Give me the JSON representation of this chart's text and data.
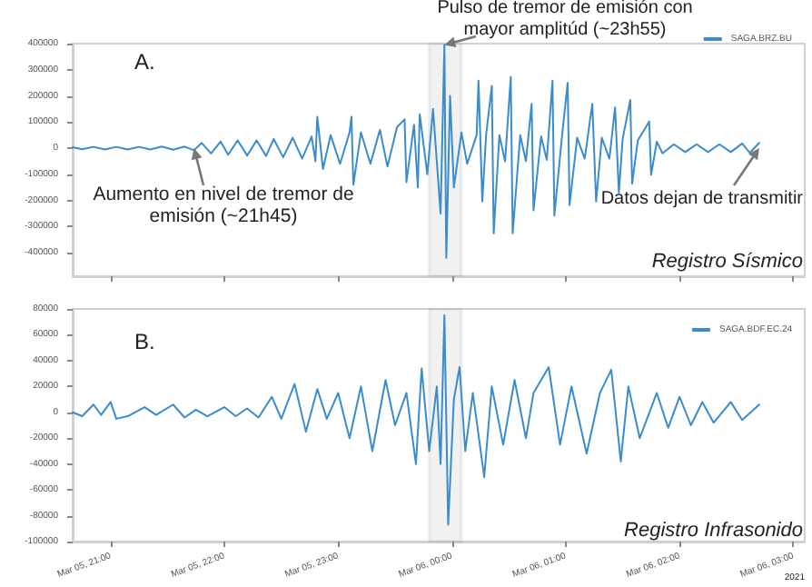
{
  "chart_data": [
    {
      "type": "line",
      "xlim": [
        "2021-03-05T20:40",
        "2021-03-06T03:06"
      ],
      "ylim": [
        -490000,
        400000
      ],
      "xticks": [
        "2021-03-05T21:00",
        "2021-03-05T22:00",
        "2021-03-05T23:00",
        "2021-03-06T00:00",
        "2021-03-06T01:00",
        "2021-03-06T02:00",
        "2021-03-06T03:00"
      ],
      "yticks": [
        -400000,
        -300000,
        -200000,
        -100000,
        0,
        100000,
        200000,
        300000,
        400000
      ],
      "tick_labels": "y",
      "grid": false,
      "legend": "top right",
      "marker": "none",
      "line_style": "solid",
      "bands": [
        {
          "axis": "x",
          "from": "2021-03-05T23:48",
          "to": "2021-03-06T00:05",
          "color": "#8c8c8c"
        }
      ],
      "annotations": [
        "A.",
        {
          "text": "Aumento en nivel de tremor de emisión (~21h45)",
          "x": "2021-03-05T21:44",
          "y": 0
        },
        {
          "text": "Pulso de tremor de emisión con mayor amplitúd (~23h55)",
          "x": "2021-03-05T23:56",
          "y": 395000
        },
        {
          "text": "Datos dejan de transmitir",
          "x": "2021-03-06T02:42",
          "y": 0
        },
        "Registro Sísmico"
      ],
      "series": [
        {
          "name": "SAGA.BRZ.BU",
          "color": "#3a8ccc",
          "x": [
            "2021-03-05T20:40",
            "2021-03-05T20:45",
            "2021-03-05T20:51",
            "2021-03-05T20:57",
            "2021-03-05T21:03",
            "2021-03-05T21:09",
            "2021-03-05T21:15",
            "2021-03-05T21:21",
            "2021-03-05T21:27",
            "2021-03-05T21:33",
            "2021-03-05T21:39",
            "2021-03-05T21:44",
            "2021-03-05T21:48",
            "2021-03-05T21:53",
            "2021-03-05T21:58",
            "2021-03-05T22:02",
            "2021-03-05T22:07",
            "2021-03-05T22:12",
            "2021-03-05T22:17",
            "2021-03-05T22:22",
            "2021-03-05T22:26",
            "2021-03-05T22:31",
            "2021-03-05T22:36",
            "2021-03-05T22:41",
            "2021-03-05T22:46",
            "2021-03-05T22:48",
            "2021-03-05T22:49",
            "2021-03-05T22:52",
            "2021-03-05T22:56",
            "2021-03-05T23:01",
            "2021-03-05T23:06",
            "2021-03-05T23:07",
            "2021-03-05T23:08",
            "2021-03-05T23:12",
            "2021-03-05T23:17",
            "2021-03-05T23:22",
            "2021-03-05T23:26",
            "2021-03-05T23:31",
            "2021-03-05T23:35",
            "2021-03-05T23:36",
            "2021-03-05T23:40",
            "2021-03-05T23:42",
            "2021-03-05T23:43",
            "2021-03-05T23:47",
            "2021-03-05T23:50",
            "2021-03-05T23:54",
            "2021-03-05T23:56",
            "2021-03-05T23:57",
            "2021-03-05T23:59",
            "2021-03-06T00:01",
            "2021-03-06T00:05",
            "2021-03-06T00:08",
            "2021-03-06T00:13",
            "2021-03-06T00:14",
            "2021-03-06T00:16",
            "2021-03-06T00:18",
            "2021-03-06T00:21",
            "2021-03-06T00:22",
            "2021-03-06T00:25",
            "2021-03-06T00:28",
            "2021-03-06T00:31",
            "2021-03-06T00:32",
            "2021-03-06T00:36",
            "2021-03-06T00:39",
            "2021-03-06T00:42",
            "2021-03-06T00:43",
            "2021-03-06T00:47",
            "2021-03-06T00:50",
            "2021-03-06T00:53",
            "2021-03-06T00:54",
            "2021-03-06T00:58",
            "2021-03-06T01:01",
            "2021-03-06T01:02",
            "2021-03-06T01:06",
            "2021-03-06T01:10",
            "2021-03-06T01:14",
            "2021-03-06T01:16",
            "2021-03-06T01:19",
            "2021-03-06T01:23",
            "2021-03-06T01:26",
            "2021-03-06T01:28",
            "2021-03-06T01:30",
            "2021-03-06T01:34",
            "2021-03-06T01:35",
            "2021-03-06T01:38",
            "2021-03-06T01:44",
            "2021-03-06T01:45",
            "2021-03-06T01:48",
            "2021-03-06T01:51",
            "2021-03-06T01:57",
            "2021-03-06T02:03",
            "2021-03-06T02:09",
            "2021-03-06T02:15",
            "2021-03-06T02:21",
            "2021-03-06T02:27",
            "2021-03-06T02:33",
            "2021-03-06T02:37",
            "2021-03-06T02:42"
          ],
          "values": [
            4000,
            -4000,
            5000,
            -5000,
            5000,
            -5000,
            5000,
            -5000,
            6000,
            -6000,
            6000,
            -8000,
            20000,
            -20000,
            25000,
            -25000,
            30000,
            -28000,
            30000,
            -30000,
            35000,
            -35000,
            40000,
            -40000,
            45000,
            -50000,
            120000,
            -80000,
            50000,
            -60000,
            60000,
            120000,
            -140000,
            60000,
            -60000,
            70000,
            -70000,
            80000,
            110000,
            -130000,
            90000,
            -150000,
            130000,
            -100000,
            150000,
            -250000,
            395000,
            -420000,
            200000,
            -150000,
            60000,
            -60000,
            50000,
            258000,
            -204000,
            50000,
            238000,
            -326000,
            50000,
            -50000,
            272000,
            -326000,
            50000,
            -50000,
            170000,
            -238000,
            45000,
            -45000,
            258000,
            -258000,
            45000,
            250000,
            -218000,
            40000,
            -40000,
            170000,
            -204000,
            40000,
            -40000,
            156000,
            -170000,
            35000,
            184000,
            -136000,
            30000,
            102000,
            -102000,
            25000,
            -20000,
            15000,
            -15000,
            15000,
            -15000,
            15000,
            -15000,
            18000,
            -18000,
            20000
          ]
        }
      ]
    },
    {
      "type": "line",
      "xlim": [
        "2021-03-05T20:40",
        "2021-03-06T03:06"
      ],
      "ylim": [
        -100000,
        80000
      ],
      "xticks": [
        {
          "value": "2021-03-05T21:00",
          "label": "Mar 05, 21:00"
        },
        {
          "value": "2021-03-05T22:00",
          "label": "Mar 05, 22:00"
        },
        {
          "value": "2021-03-05T23:00",
          "label": "Mar 05, 23:00"
        },
        {
          "value": "2021-03-06T00:00",
          "label": "Mar 06, 00:00"
        },
        {
          "value": "2021-03-06T01:00",
          "label": "Mar 06, 01:00"
        },
        {
          "value": "2021-03-06T02:00",
          "label": "Mar 06, 02:00"
        },
        {
          "value": "2021-03-06T03:00",
          "label": "Mar 06, 03:00"
        }
      ],
      "yticks": [
        -100000,
        -80000,
        -60000,
        -40000,
        -20000,
        0,
        20000,
        40000,
        60000,
        80000
      ],
      "grid": false,
      "legend": "top right",
      "marker": "none",
      "line_style": "solid",
      "bands": [
        {
          "axis": "x",
          "from": "2021-03-05T23:48",
          "to": "2021-03-06T00:05",
          "color": "#8c8c8c"
        }
      ],
      "annotations": [
        "B.",
        "Registro Infrasonido",
        "2021"
      ],
      "series": [
        {
          "name": "SAGA.BDF.EC.24",
          "color": "#3a8ccc",
          "x": [
            "2021-03-05T20:40",
            "2021-03-05T20:45",
            "2021-03-05T20:51",
            "2021-03-05T20:55",
            "2021-03-05T21:00",
            "2021-03-05T21:03",
            "2021-03-05T21:09",
            "2021-03-05T21:18",
            "2021-03-05T21:24",
            "2021-03-05T21:33",
            "2021-03-05T21:39",
            "2021-03-05T21:45",
            "2021-03-05T21:51",
            "2021-03-05T22:00",
            "2021-03-05T22:06",
            "2021-03-05T22:12",
            "2021-03-05T22:18",
            "2021-03-05T22:25",
            "2021-03-05T22:30",
            "2021-03-05T22:37",
            "2021-03-05T22:43",
            "2021-03-05T22:49",
            "2021-03-05T22:54",
            "2021-03-05T23:00",
            "2021-03-05T23:06",
            "2021-03-05T23:12",
            "2021-03-05T23:18",
            "2021-03-05T23:25",
            "2021-03-05T23:30",
            "2021-03-05T23:36",
            "2021-03-05T23:41",
            "2021-03-05T23:44",
            "2021-03-05T23:48",
            "2021-03-05T23:52",
            "2021-03-05T23:54",
            "2021-03-05T23:56",
            "2021-03-05T23:58",
            "2021-03-06T00:01",
            "2021-03-06T00:04",
            "2021-03-06T00:07",
            "2021-03-06T00:11",
            "2021-03-06T00:17",
            "2021-03-06T00:21",
            "2021-03-06T00:27",
            "2021-03-06T00:33",
            "2021-03-06T00:39",
            "2021-03-06T00:43",
            "2021-03-06T00:51",
            "2021-03-06T00:57",
            "2021-03-06T01:03",
            "2021-03-06T01:11",
            "2021-03-06T01:18",
            "2021-03-06T01:24",
            "2021-03-06T01:29",
            "2021-03-06T01:33",
            "2021-03-06T01:39",
            "2021-03-06T01:48",
            "2021-03-06T01:54",
            "2021-03-06T02:00",
            "2021-03-06T02:06",
            "2021-03-06T02:12",
            "2021-03-06T02:18",
            "2021-03-06T02:27",
            "2021-03-06T02:33",
            "2021-03-06T02:42"
          ],
          "values": [
            0,
            -3000,
            6000,
            -2000,
            8000,
            -5000,
            -3000,
            4000,
            -2000,
            6000,
            -4000,
            2000,
            -3000,
            4000,
            -3000,
            3000,
            -4000,
            12000,
            -5000,
            22000,
            -15000,
            18000,
            -5000,
            15000,
            -20000,
            20000,
            -30000,
            25000,
            -10000,
            15000,
            -40000,
            34000,
            -30000,
            20000,
            -40000,
            75000,
            -87000,
            10000,
            35000,
            -30000,
            15000,
            -50000,
            20000,
            -25000,
            25000,
            -20000,
            15000,
            35000,
            -25000,
            20000,
            -32000,
            15000,
            33000,
            -38000,
            20000,
            -20000,
            15000,
            -12000,
            12000,
            -10000,
            8000,
            -8000,
            8000,
            -6000,
            6000
          ]
        }
      ]
    }
  ]
}
